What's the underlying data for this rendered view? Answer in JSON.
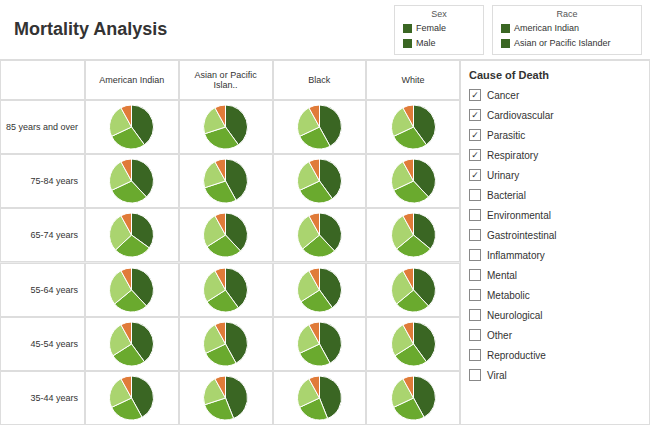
{
  "chart_data": {
    "type": "pie",
    "title": "Mortality Analysis",
    "colors": [
      "#3a6623",
      "#6aaa2e",
      "#aad46f",
      "#e07b39"
    ],
    "column_labels": [
      "American Indian",
      "Asian or Pacific Islan..",
      "Black",
      "White"
    ],
    "row_labels": [
      "85 years and over",
      "75-84 years",
      "65-74 years",
      "55-64 years",
      "45-54 years",
      "35-44 years"
    ],
    "cells": [
      [
        [
          0.4,
          0.28,
          0.24,
          0.08
        ],
        [
          0.4,
          0.3,
          0.22,
          0.08
        ],
        [
          0.42,
          0.26,
          0.24,
          0.08
        ],
        [
          0.4,
          0.28,
          0.24,
          0.08
        ]
      ],
      [
        [
          0.38,
          0.3,
          0.24,
          0.08
        ],
        [
          0.42,
          0.28,
          0.22,
          0.08
        ],
        [
          0.4,
          0.28,
          0.24,
          0.08
        ],
        [
          0.38,
          0.3,
          0.24,
          0.08
        ]
      ],
      [
        [
          0.35,
          0.28,
          0.29,
          0.08
        ],
        [
          0.38,
          0.28,
          0.26,
          0.08
        ],
        [
          0.38,
          0.26,
          0.28,
          0.08
        ],
        [
          0.36,
          0.28,
          0.28,
          0.08
        ]
      ],
      [
        [
          0.38,
          0.26,
          0.28,
          0.08
        ],
        [
          0.4,
          0.26,
          0.26,
          0.08
        ],
        [
          0.4,
          0.26,
          0.26,
          0.08
        ],
        [
          0.38,
          0.26,
          0.28,
          0.08
        ]
      ],
      [
        [
          0.4,
          0.26,
          0.26,
          0.08
        ],
        [
          0.42,
          0.26,
          0.24,
          0.08
        ],
        [
          0.42,
          0.26,
          0.24,
          0.08
        ],
        [
          0.4,
          0.26,
          0.26,
          0.08
        ]
      ],
      [
        [
          0.42,
          0.26,
          0.24,
          0.08
        ],
        [
          0.44,
          0.26,
          0.22,
          0.08
        ],
        [
          0.44,
          0.24,
          0.24,
          0.08
        ],
        [
          0.42,
          0.26,
          0.24,
          0.08
        ]
      ]
    ],
    "annotations": [
      {
        "title": "Sex",
        "items": [
          "Female",
          "Male"
        ]
      },
      {
        "title": "Race",
        "items": [
          "American Indian",
          "Asian or Pacific Islander"
        ]
      },
      {
        "title": "Cause of Death",
        "check_mark": "✓",
        "items": [
          {
            "label": "Cancer",
            "checked": true
          },
          {
            "label": "Cardiovascular",
            "checked": true
          },
          {
            "label": "Parasitic",
            "checked": true
          },
          {
            "label": "Respiratory",
            "checked": true
          },
          {
            "label": "Urinary",
            "checked": true
          },
          {
            "label": "Bacterial",
            "checked": false
          },
          {
            "label": "Environmental",
            "checked": false
          },
          {
            "label": "Gastrointestinal",
            "checked": false
          },
          {
            "label": "Inflammatory",
            "checked": false
          },
          {
            "label": "Mental",
            "checked": false
          },
          {
            "label": "Metabolic",
            "checked": false
          },
          {
            "label": "Neurological",
            "checked": false
          },
          {
            "label": "Other",
            "checked": false
          },
          {
            "label": "Reproductive",
            "checked": false
          },
          {
            "label": "Viral",
            "checked": false
          }
        ]
      }
    ]
  }
}
